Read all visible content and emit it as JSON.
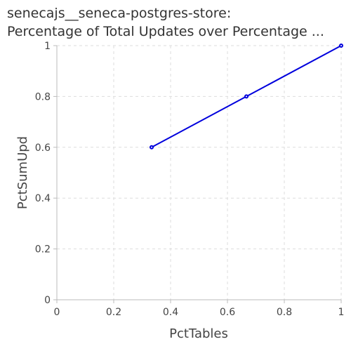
{
  "chart_data": {
    "type": "line",
    "title_lines": [
      "senecajs__seneca-postgres-store:",
      "Percentage of Total Updates over Percentage ..."
    ],
    "xlabel": "PctTables",
    "ylabel": "PctSumUpd",
    "xlim": [
      0,
      1
    ],
    "ylim": [
      0,
      1
    ],
    "x_ticks": [
      0,
      0.2,
      0.4,
      0.6,
      0.8,
      1
    ],
    "x_tick_labels": [
      "0",
      "0.2",
      "0.4",
      "0.6",
      "0.8",
      "1"
    ],
    "y_ticks": [
      0,
      0.2,
      0.4,
      0.6,
      0.8,
      1
    ],
    "y_tick_labels": [
      "0",
      "0.2",
      "0.4",
      "0.6",
      "0.8",
      "1"
    ],
    "grid": true,
    "legend": "none",
    "series": [
      {
        "color": "#0000dd",
        "x": [
          0.3333,
          0.6667,
          1.0
        ],
        "y": [
          0.6,
          0.8,
          1.0
        ]
      }
    ]
  }
}
